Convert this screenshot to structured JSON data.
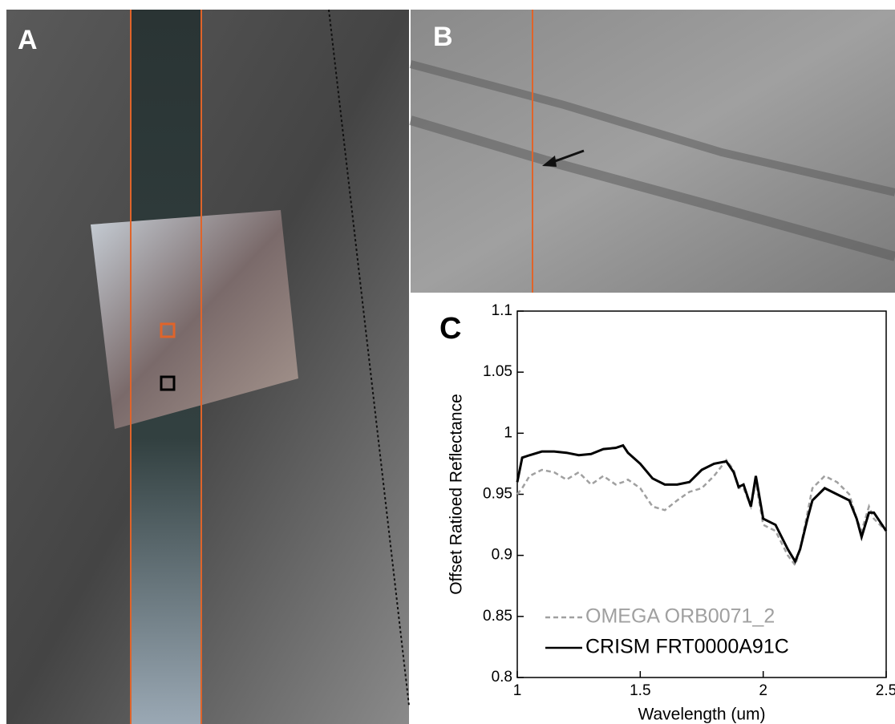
{
  "panel_labels": [
    "A",
    "B",
    "C"
  ],
  "chart_data": {
    "type": "line",
    "xlabel": "Wavelength (um)",
    "ylabel": "Offset Ratioed Reflectance",
    "x": [
      1.0,
      1.02,
      1.05,
      1.1,
      1.15,
      1.2,
      1.25,
      1.3,
      1.35,
      1.4,
      1.43,
      1.45,
      1.5,
      1.55,
      1.6,
      1.65,
      1.7,
      1.75,
      1.8,
      1.85,
      1.88,
      1.9,
      1.92,
      1.95,
      1.97,
      2.0,
      2.05,
      2.1,
      2.13,
      2.15,
      2.18,
      2.2,
      2.25,
      2.3,
      2.35,
      2.38,
      2.4,
      2.43,
      2.45,
      2.5
    ],
    "series": [
      {
        "name": "OMEGA ORB0071_2",
        "color": "#a0a0a0",
        "dash": true,
        "values": [
          0.95,
          0.955,
          0.965,
          0.97,
          0.968,
          0.962,
          0.968,
          0.958,
          0.965,
          0.958,
          0.96,
          0.962,
          0.955,
          0.94,
          0.937,
          0.945,
          0.952,
          0.955,
          0.965,
          0.978,
          0.97,
          0.955,
          0.955,
          0.94,
          0.96,
          0.925,
          0.92,
          0.9,
          0.892,
          0.905,
          0.935,
          0.955,
          0.965,
          0.96,
          0.95,
          0.93,
          0.92,
          0.94,
          0.93,
          0.92
        ]
      },
      {
        "name": "CRISM FRT0000A91C",
        "color": "#000000",
        "dash": false,
        "values": [
          0.96,
          0.98,
          0.982,
          0.985,
          0.985,
          0.984,
          0.982,
          0.983,
          0.987,
          0.988,
          0.99,
          0.984,
          0.975,
          0.963,
          0.958,
          0.958,
          0.96,
          0.97,
          0.975,
          0.977,
          0.968,
          0.956,
          0.958,
          0.94,
          0.965,
          0.93,
          0.925,
          0.905,
          0.895,
          0.905,
          0.93,
          0.945,
          0.955,
          0.95,
          0.945,
          0.93,
          0.915,
          0.935,
          0.935,
          0.92
        ]
      }
    ],
    "xlim": [
      1,
      2.5
    ],
    "xticks": [
      1,
      1.5,
      2,
      2.5
    ],
    "ylim": [
      0.8,
      1.1
    ],
    "yticks": [
      0.8,
      0.85,
      0.9,
      0.95,
      1,
      1.05,
      1.1
    ]
  }
}
